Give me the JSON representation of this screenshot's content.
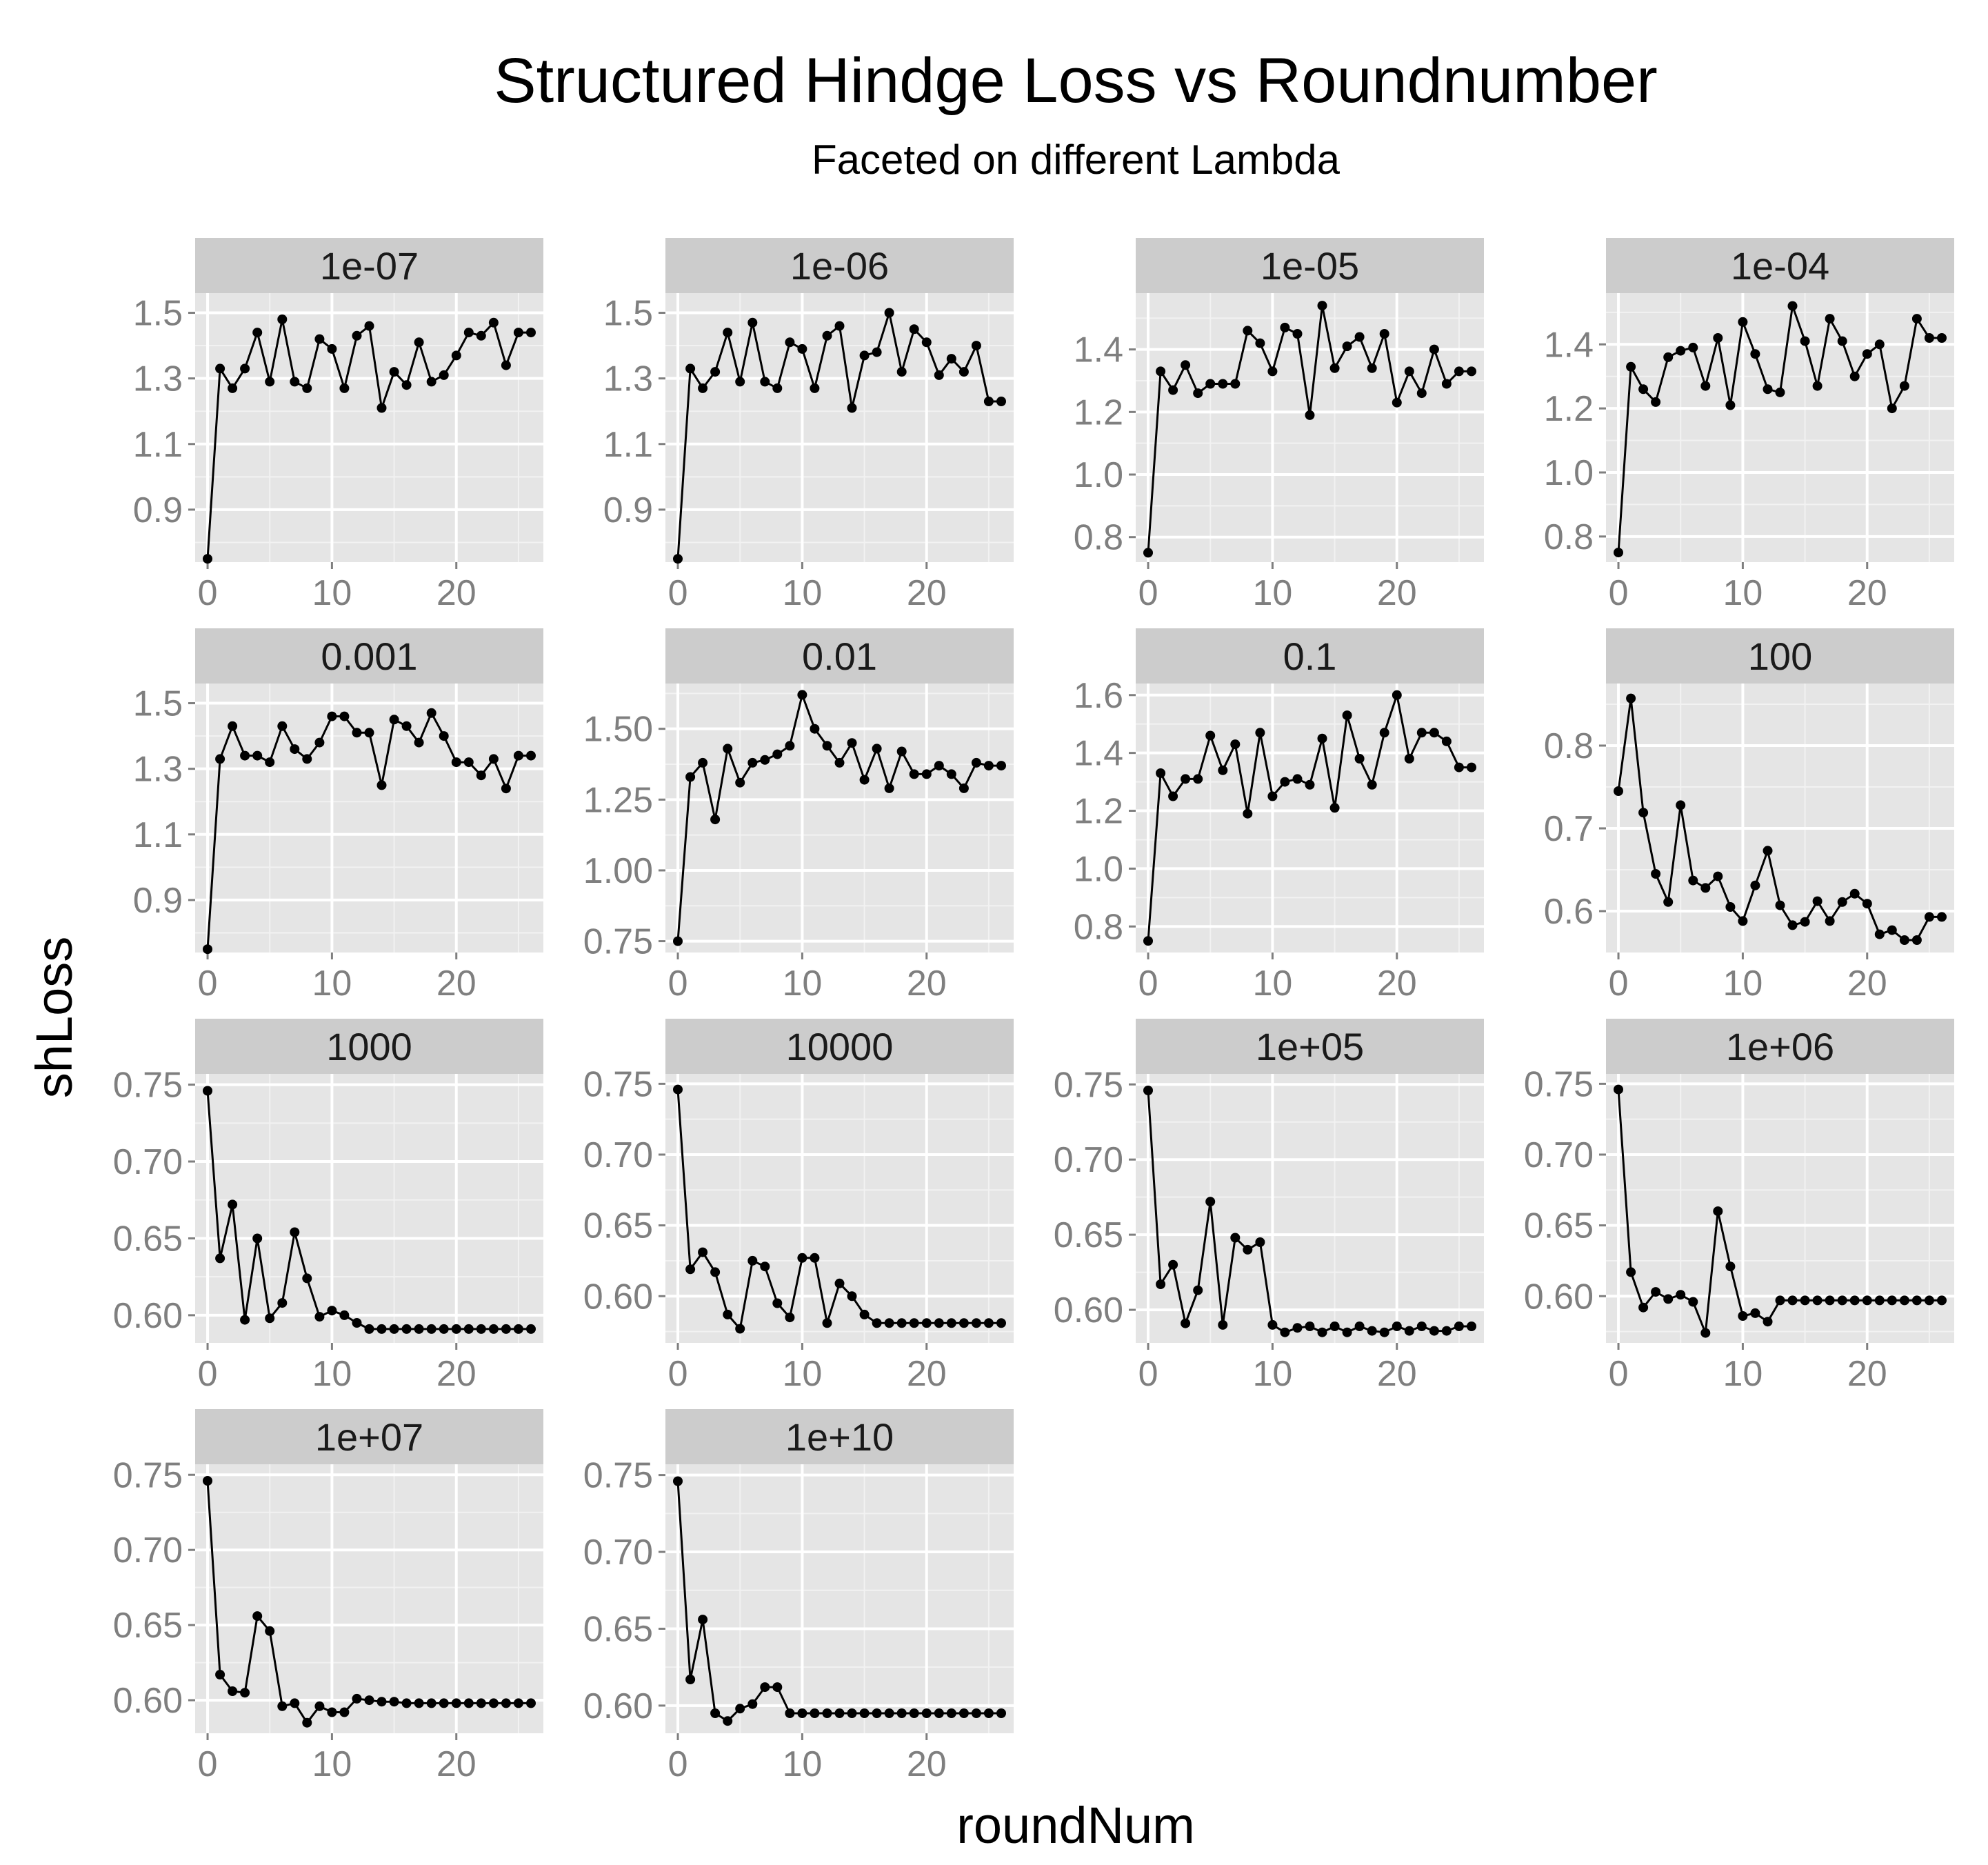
{
  "chart_data": {
    "type": "line",
    "title": "Structured Hindge Loss vs Roundnumber",
    "subtitle": "Faceted on different Lambda",
    "xlabel": "roundNum",
    "ylabel": "shLoss",
    "grid": true,
    "legend": "none",
    "colors": {
      "panel_bg": "#e5e5e5",
      "strip_bg": "#cccccc",
      "grid": "#ffffff",
      "line": "#000000",
      "tick_text": "#7f7f7f"
    },
    "x": [
      0,
      1,
      2,
      3,
      4,
      5,
      6,
      7,
      8,
      9,
      10,
      11,
      12,
      13,
      14,
      15,
      16,
      17,
      18,
      19,
      20,
      21,
      22,
      23,
      24,
      25,
      26
    ],
    "xlim": [
      -1,
      27
    ],
    "xticks": [
      0,
      10,
      20
    ],
    "facets": [
      {
        "label": "1e-07",
        "ylim": [
          0.74,
          1.56
        ],
        "yticks": [
          "0.9",
          "1.1",
          "1.3",
          "1.5"
        ],
        "values": [
          0.75,
          1.33,
          1.27,
          1.33,
          1.44,
          1.29,
          1.48,
          1.29,
          1.27,
          1.42,
          1.39,
          1.27,
          1.43,
          1.46,
          1.21,
          1.32,
          1.28,
          1.41,
          1.29,
          1.31,
          1.37,
          1.44,
          1.43,
          1.47,
          1.34,
          1.44,
          1.44
        ]
      },
      {
        "label": "1e-06",
        "ylim": [
          0.74,
          1.56
        ],
        "yticks": [
          "0.9",
          "1.1",
          "1.3",
          "1.5"
        ],
        "values": [
          0.75,
          1.33,
          1.27,
          1.32,
          1.44,
          1.29,
          1.47,
          1.29,
          1.27,
          1.41,
          1.39,
          1.27,
          1.43,
          1.46,
          1.21,
          1.37,
          1.38,
          1.5,
          1.32,
          1.45,
          1.41,
          1.31,
          1.36,
          1.32,
          1.4,
          1.23,
          1.23
        ]
      },
      {
        "label": "1e-05",
        "ylim": [
          0.72,
          1.58
        ],
        "yticks": [
          "0.8",
          "1.0",
          "1.2",
          "1.4"
        ],
        "values": [
          0.75,
          1.33,
          1.27,
          1.35,
          1.26,
          1.29,
          1.29,
          1.29,
          1.46,
          1.42,
          1.33,
          1.47,
          1.45,
          1.19,
          1.54,
          1.34,
          1.41,
          1.44,
          1.34,
          1.45,
          1.23,
          1.33,
          1.26,
          1.4,
          1.29,
          1.33,
          1.33
        ]
      },
      {
        "label": "1e-04",
        "ylim": [
          0.72,
          1.56
        ],
        "yticks": [
          "0.8",
          "1.0",
          "1.2",
          "1.4"
        ],
        "values": [
          0.75,
          1.33,
          1.26,
          1.22,
          1.36,
          1.38,
          1.39,
          1.27,
          1.42,
          1.21,
          1.47,
          1.37,
          1.26,
          1.25,
          1.52,
          1.41,
          1.27,
          1.48,
          1.41,
          1.3,
          1.37,
          1.4,
          1.2,
          1.27,
          1.48,
          1.42,
          1.42
        ]
      },
      {
        "label": "0.001",
        "ylim": [
          0.74,
          1.56
        ],
        "yticks": [
          "0.9",
          "1.1",
          "1.3",
          "1.5"
        ],
        "values": [
          0.75,
          1.33,
          1.43,
          1.34,
          1.34,
          1.32,
          1.43,
          1.36,
          1.33,
          1.38,
          1.46,
          1.46,
          1.41,
          1.41,
          1.25,
          1.45,
          1.43,
          1.38,
          1.47,
          1.4,
          1.32,
          1.32,
          1.28,
          1.33,
          1.24,
          1.34,
          1.34
        ]
      },
      {
        "label": "0.01",
        "ylim": [
          0.71,
          1.66
        ],
        "yticks": [
          "0.75",
          "1.00",
          "1.25",
          "1.50"
        ],
        "values": [
          0.75,
          1.33,
          1.38,
          1.18,
          1.43,
          1.31,
          1.38,
          1.39,
          1.41,
          1.44,
          1.62,
          1.5,
          1.44,
          1.38,
          1.45,
          1.32,
          1.43,
          1.29,
          1.42,
          1.34,
          1.34,
          1.37,
          1.34,
          1.29,
          1.38,
          1.37,
          1.37
        ]
      },
      {
        "label": "0.1",
        "ylim": [
          0.71,
          1.64
        ],
        "yticks": [
          "0.8",
          "1.0",
          "1.2",
          "1.4",
          "1.6"
        ],
        "values": [
          0.75,
          1.33,
          1.25,
          1.31,
          1.31,
          1.46,
          1.34,
          1.43,
          1.19,
          1.47,
          1.25,
          1.3,
          1.31,
          1.29,
          1.45,
          1.21,
          1.53,
          1.38,
          1.29,
          1.47,
          1.6,
          1.38,
          1.47,
          1.47,
          1.44,
          1.35,
          1.35
        ]
      },
      {
        "label": "100",
        "ylim": [
          0.55,
          0.875
        ],
        "yticks": [
          "0.6",
          "0.7",
          "0.8"
        ],
        "values": [
          0.745,
          0.857,
          0.719,
          0.645,
          0.611,
          0.728,
          0.637,
          0.628,
          0.642,
          0.605,
          0.588,
          0.631,
          0.673,
          0.607,
          0.583,
          0.587,
          0.612,
          0.588,
          0.611,
          0.621,
          0.609,
          0.572,
          0.577,
          0.565,
          0.565,
          0.593,
          0.593
        ]
      },
      {
        "label": "1000",
        "ylim": [
          0.582,
          0.757
        ],
        "yticks": [
          "0.60",
          "0.65",
          "0.70",
          "0.75"
        ],
        "values": [
          0.746,
          0.637,
          0.672,
          0.597,
          0.65,
          0.598,
          0.608,
          0.654,
          0.624,
          0.599,
          0.603,
          0.6,
          0.595,
          0.591,
          0.591,
          0.591,
          0.591,
          0.591,
          0.591,
          0.591,
          0.591,
          0.591,
          0.591,
          0.591,
          0.591,
          0.591,
          0.591
        ]
      },
      {
        "label": "10000",
        "ylim": [
          0.567,
          0.757
        ],
        "yticks": [
          "0.60",
          "0.65",
          "0.70",
          "0.75"
        ],
        "values": [
          0.746,
          0.619,
          0.631,
          0.617,
          0.587,
          0.577,
          0.625,
          0.621,
          0.595,
          0.585,
          0.627,
          0.627,
          0.581,
          0.609,
          0.6,
          0.587,
          0.581,
          0.581,
          0.581,
          0.581,
          0.581,
          0.581,
          0.581,
          0.581,
          0.581,
          0.581,
          0.581
        ]
      },
      {
        "label": "1e+05",
        "ylim": [
          0.578,
          0.757
        ],
        "yticks": [
          "0.60",
          "0.65",
          "0.70",
          "0.75"
        ],
        "values": [
          0.746,
          0.617,
          0.63,
          0.591,
          0.613,
          0.672,
          0.59,
          0.648,
          0.64,
          0.645,
          0.59,
          0.585,
          0.588,
          0.589,
          0.585,
          0.589,
          0.585,
          0.589,
          0.586,
          0.585,
          0.589,
          0.586,
          0.589,
          0.586,
          0.586,
          0.589,
          0.589
        ]
      },
      {
        "label": "1e+06",
        "ylim": [
          0.567,
          0.757
        ],
        "yticks": [
          "0.60",
          "0.65",
          "0.70",
          "0.75"
        ],
        "values": [
          0.746,
          0.617,
          0.592,
          0.603,
          0.598,
          0.601,
          0.596,
          0.574,
          0.66,
          0.621,
          0.586,
          0.588,
          0.582,
          0.597,
          0.597,
          0.597,
          0.597,
          0.597,
          0.597,
          0.597,
          0.597,
          0.597,
          0.597,
          0.597,
          0.597,
          0.597,
          0.597
        ]
      },
      {
        "label": "1e+07",
        "ylim": [
          0.578,
          0.757
        ],
        "yticks": [
          "0.60",
          "0.65",
          "0.70",
          "0.75"
        ],
        "values": [
          0.746,
          0.617,
          0.606,
          0.605,
          0.656,
          0.646,
          0.596,
          0.598,
          0.585,
          0.596,
          0.592,
          0.592,
          0.601,
          0.6,
          0.599,
          0.599,
          0.598,
          0.598,
          0.598,
          0.598,
          0.598,
          0.598,
          0.598,
          0.598,
          0.598,
          0.598,
          0.598
        ]
      },
      {
        "label": "1e+10",
        "ylim": [
          0.582,
          0.757
        ],
        "yticks": [
          "0.60",
          "0.65",
          "0.70",
          "0.75"
        ],
        "values": [
          0.746,
          0.617,
          0.656,
          0.595,
          0.59,
          0.598,
          0.601,
          0.612,
          0.612,
          0.595,
          0.595,
          0.595,
          0.595,
          0.595,
          0.595,
          0.595,
          0.595,
          0.595,
          0.595,
          0.595,
          0.595,
          0.595,
          0.595,
          0.595,
          0.595,
          0.595,
          0.595
        ]
      }
    ]
  }
}
